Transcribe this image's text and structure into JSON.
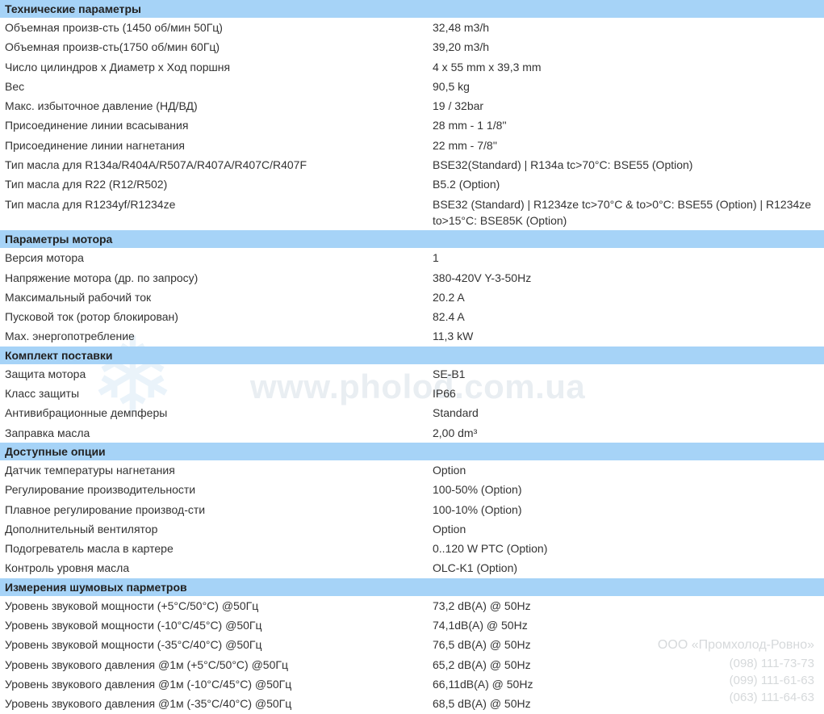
{
  "sections": [
    {
      "title": "Технические параметры",
      "rows": [
        {
          "label": "Объемная произв-сть (1450 об/мин 50Гц)",
          "value": "32,48 m3/h"
        },
        {
          "label": "Объемная произв-сть(1750 об/мин 60Гц)",
          "value": "39,20 m3/h"
        },
        {
          "label": "Число цилиндров x Диаметр x Ход поршня",
          "value": "4 x 55 mm x 39,3 mm"
        },
        {
          "label": "Вес",
          "value": "90,5 kg"
        },
        {
          "label": "Макс. избыточное давление (НД/ВД)",
          "value": "19 / 32bar"
        },
        {
          "label": "Присоединение линии всасывания",
          "value": "28 mm - 1 1/8''"
        },
        {
          "label": "Присоединение линии нагнетания",
          "value": "22 mm - 7/8''"
        },
        {
          "label": "Тип масла для R134a/R404A/R507A/R407A/R407C/R407F",
          "value": "BSE32(Standard) | R134a tc>70°C: BSE55 (Option)"
        },
        {
          "label": "Тип масла для R22 (R12/R502)",
          "value": "B5.2 (Option)"
        },
        {
          "label": "Тип масла для R1234yf/R1234ze",
          "value": "BSE32 (Standard) | R1234ze tc>70°C & to>0°C: BSE55 (Option) | R1234ze to>15°C: BSE85K (Option)"
        }
      ]
    },
    {
      "title": "Параметры мотора",
      "rows": [
        {
          "label": "Версия мотора",
          "value": "1"
        },
        {
          "label": "Напряжение мотора (др. по запросу)",
          "value": "380-420V Y-3-50Hz"
        },
        {
          "label": "Максимальный рабочий ток",
          "value": "20.2 A"
        },
        {
          "label": "Пусковой ток (ротор блокирован)",
          "value": "82.4 A"
        },
        {
          "label": "Max. энергопотребление",
          "value": "11,3 kW"
        }
      ]
    },
    {
      "title": "Комплект поставки",
      "rows": [
        {
          "label": "Защита мотора",
          "value": "SE-B1"
        },
        {
          "label": "Класс защиты",
          "value": "IP66"
        },
        {
          "label": "Антивибрационные демпферы",
          "value": "Standard"
        },
        {
          "label": "Заправка масла",
          "value": "2,00 dm³"
        }
      ]
    },
    {
      "title": "Доступные опции",
      "rows": [
        {
          "label": "Датчик температуры нагнетания",
          "value": "Option"
        },
        {
          "label": "Регулирование производительности",
          "value": "100-50% (Option)"
        },
        {
          "label": "Плавное регулирование производ-сти",
          "value": "100-10% (Option)"
        },
        {
          "label": "Дополнительный вентилятор",
          "value": "Option"
        },
        {
          "label": "Подогреватель масла в картере",
          "value": "0..120 W PTC (Option)"
        },
        {
          "label": "Контроль уровня масла",
          "value": "OLC-K1 (Option)"
        }
      ]
    },
    {
      "title": "Измерения шумовых парметров",
      "rows": [
        {
          "label": "Уровень звуковой мощности (+5°C/50°C) @50Гц",
          "value": "73,2 dB(A) @ 50Hz"
        },
        {
          "label": "Уровень звуковой мощности (-10°C/45°C) @50Гц",
          "value": "74,1dB(A) @ 50Hz"
        },
        {
          "label": "Уровень звуковой мощности (-35°C/40°C) @50Гц",
          "value": "76,5 dB(A) @ 50Hz"
        },
        {
          "label": "Уровень звукового давления @1м (+5°C/50°C) @50Гц",
          "value": "65,2 dB(A) @ 50Hz"
        },
        {
          "label": "Уровень звукового давления @1м (-10°C/45°C) @50Гц",
          "value": "66,11dB(A) @ 50Hz"
        },
        {
          "label": "Уровень звукового давления @1м (-35°C/40°C) @50Гц",
          "value": "68,5 dB(A) @ 50Hz"
        }
      ]
    }
  ],
  "watermark": {
    "url": "www.pholod.com.ua",
    "company": "ООО «Промхолод-Ровно»",
    "phones": [
      "(098) 111-73-73",
      "(099) 111-61-63",
      "(063) 111-64-63"
    ]
  }
}
